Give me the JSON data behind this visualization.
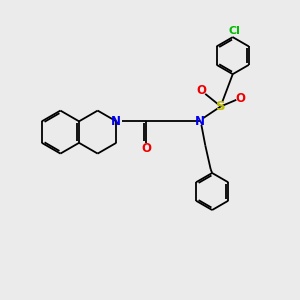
{
  "bg_color": "#ebebeb",
  "bond_color": "#000000",
  "n_color": "#0000ee",
  "o_color": "#ee0000",
  "s_color": "#bbbb00",
  "cl_color": "#00bb00",
  "figsize": [
    3.0,
    3.0
  ],
  "dpi": 100,
  "xlim": [
    0,
    10
  ],
  "ylim": [
    0,
    10
  ]
}
